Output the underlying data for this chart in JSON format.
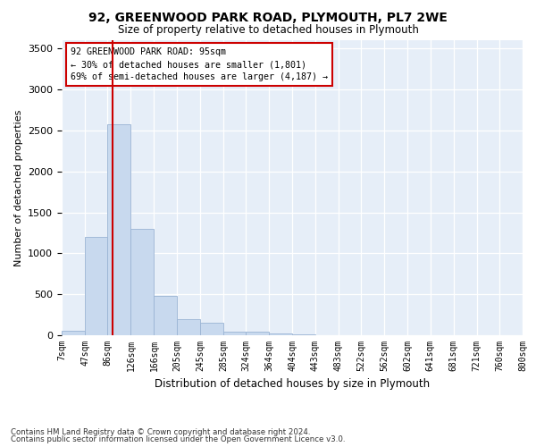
{
  "title1": "92, GREENWOOD PARK ROAD, PLYMOUTH, PL7 2WE",
  "title2": "Size of property relative to detached houses in Plymouth",
  "xlabel": "Distribution of detached houses by size in Plymouth",
  "ylabel": "Number of detached properties",
  "bar_color": "#c8d9ee",
  "bar_edgecolor": "#9ab4d4",
  "bg_color": "#e6eef8",
  "vline_x": 95,
  "vline_color": "#cc0000",
  "annotation_text": "92 GREENWOOD PARK ROAD: 95sqm\n← 30% of detached houses are smaller (1,801)\n69% of semi-detached houses are larger (4,187) →",
  "annotation_box_color": "#cc0000",
  "footnote1": "Contains HM Land Registry data © Crown copyright and database right 2024.",
  "footnote2": "Contains public sector information licensed under the Open Government Licence v3.0.",
  "bins": [
    7,
    47,
    86,
    126,
    166,
    205,
    245,
    285,
    324,
    364,
    404,
    443,
    483,
    522,
    562,
    602,
    641,
    681,
    721,
    760,
    800
  ],
  "counts": [
    50,
    1200,
    2580,
    1300,
    480,
    200,
    150,
    45,
    45,
    18,
    8,
    3,
    0,
    0,
    0,
    0,
    0,
    0,
    0,
    0
  ],
  "ylim": [
    0,
    3600
  ],
  "yticks": [
    0,
    500,
    1000,
    1500,
    2000,
    2500,
    3000,
    3500
  ],
  "figsize": [
    6.0,
    5.0
  ],
  "dpi": 100
}
